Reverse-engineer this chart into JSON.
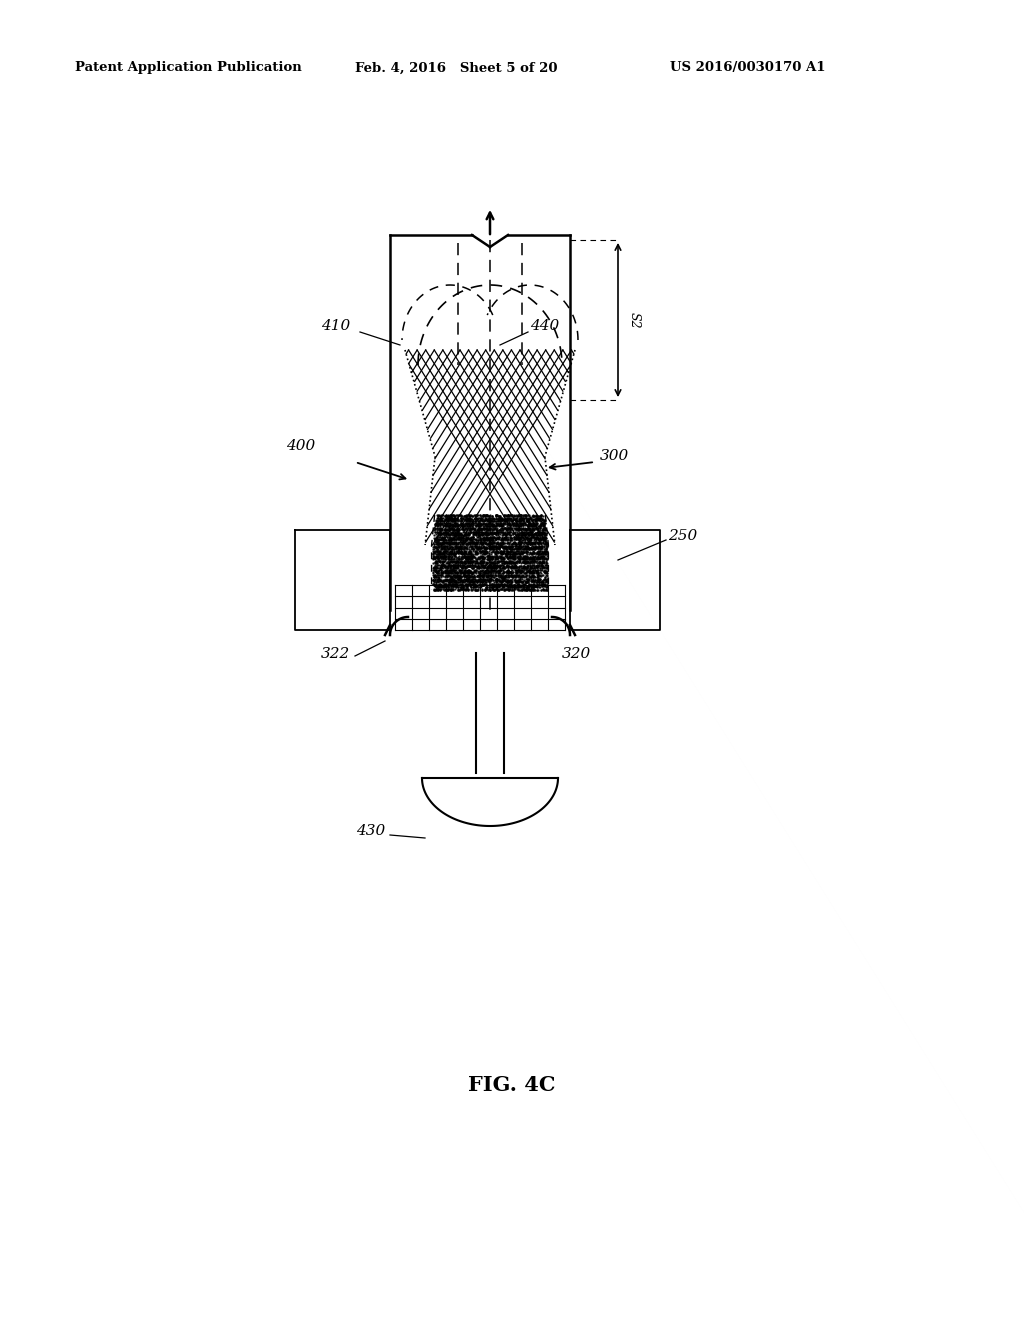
{
  "bg_color": "#ffffff",
  "header_left": "Patent Application Publication",
  "header_mid": "Feb. 4, 2016   Sheet 5 of 20",
  "header_right": "US 2016/0030170 A1",
  "figure_label": "FIG. 4C"
}
